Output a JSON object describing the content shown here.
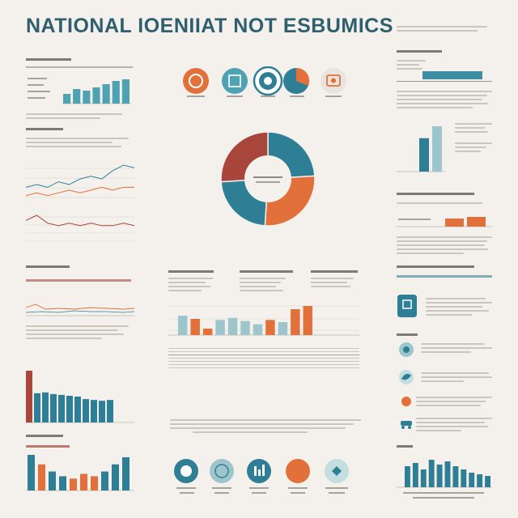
{
  "title": "NATIONAL IOENIIAT NOT ESBUMICS",
  "colors": {
    "teal": "#2e7f95",
    "red": "#a8463c",
    "orange": "#e2703a",
    "lightblue": "#9cc6cc",
    "paper": "#f4f1ec"
  },
  "icons": [
    {
      "name": "chart-icon",
      "color": "#e2703a"
    },
    {
      "name": "building-icon",
      "color": "#4fa2b2"
    },
    {
      "name": "eye-icon",
      "color": "#2e7f95"
    },
    {
      "name": "pie-icon",
      "color": "#2e7f95"
    },
    {
      "name": "gear-icon",
      "color": "#e2703a"
    }
  ],
  "chart_data": [
    {
      "type": "pie",
      "values": [
        24,
        27,
        23,
        26
      ],
      "colors": [
        "#2e7f95",
        "#e2703a",
        "#2e7f95",
        "#a8463c"
      ],
      "donut": true
    },
    {
      "type": "bar",
      "values": [
        6,
        9,
        8,
        10,
        12,
        14,
        15
      ],
      "color": "#4fa2b2"
    },
    {
      "type": "bar",
      "values": [
        28,
        38
      ],
      "colors": [
        "#2e7f95",
        "#9cc6cc"
      ]
    },
    {
      "type": "bar",
      "values": [
        5,
        6
      ],
      "color": "#e2703a"
    },
    {
      "type": "bar",
      "values": [
        18,
        15,
        6,
        14,
        16,
        13,
        10,
        14,
        12,
        24,
        27
      ],
      "colors": [
        "#9cc6cc",
        "#e2703a",
        "#e2703a",
        "#9cc6cc",
        "#9cc6cc",
        "#9cc6cc",
        "#9cc6cc",
        "#e2703a",
        "#9cc6cc",
        "#e2703a",
        "#e2703a"
      ]
    },
    {
      "type": "bar",
      "values": [
        62,
        35,
        36,
        34,
        33,
        32,
        31,
        28,
        27,
        26,
        27
      ],
      "colors": [
        "#a8463c",
        "#2e7f95",
        "#2e7f95",
        "#2e7f95",
        "#2e7f95",
        "#2e7f95",
        "#2e7f95",
        "#2e7f95",
        "#2e7f95",
        "#2e7f95",
        "#2e7f95"
      ]
    },
    {
      "type": "bar",
      "values": [
        30,
        22,
        16,
        12,
        10,
        14,
        12,
        16,
        22,
        28
      ],
      "colors": [
        "#2e7f95",
        "#e2703a",
        "#2e7f95",
        "#2e7f95",
        "#e2703a",
        "#e2703a",
        "#e2703a",
        "#2e7f95",
        "#2e7f95",
        "#2e7f95"
      ]
    },
    {
      "type": "bar",
      "values": [
        26,
        30,
        22,
        34,
        28,
        32,
        26,
        22,
        18,
        16,
        14
      ],
      "color": "#2e7f95"
    },
    {
      "type": "line",
      "series": [
        {
          "color": "#2e7f95",
          "y": [
            6,
            7,
            6,
            8,
            7,
            9,
            10,
            9,
            12,
            14,
            13
          ]
        },
        {
          "color": "#e2703a",
          "y": [
            3,
            4,
            3,
            4,
            5,
            4,
            5,
            6,
            5,
            6,
            6
          ]
        }
      ]
    },
    {
      "type": "line",
      "series": [
        {
          "color": "#a8463c",
          "y": [
            8,
            10,
            7,
            6,
            7,
            6,
            7,
            6,
            6,
            7,
            6
          ]
        }
      ]
    }
  ]
}
